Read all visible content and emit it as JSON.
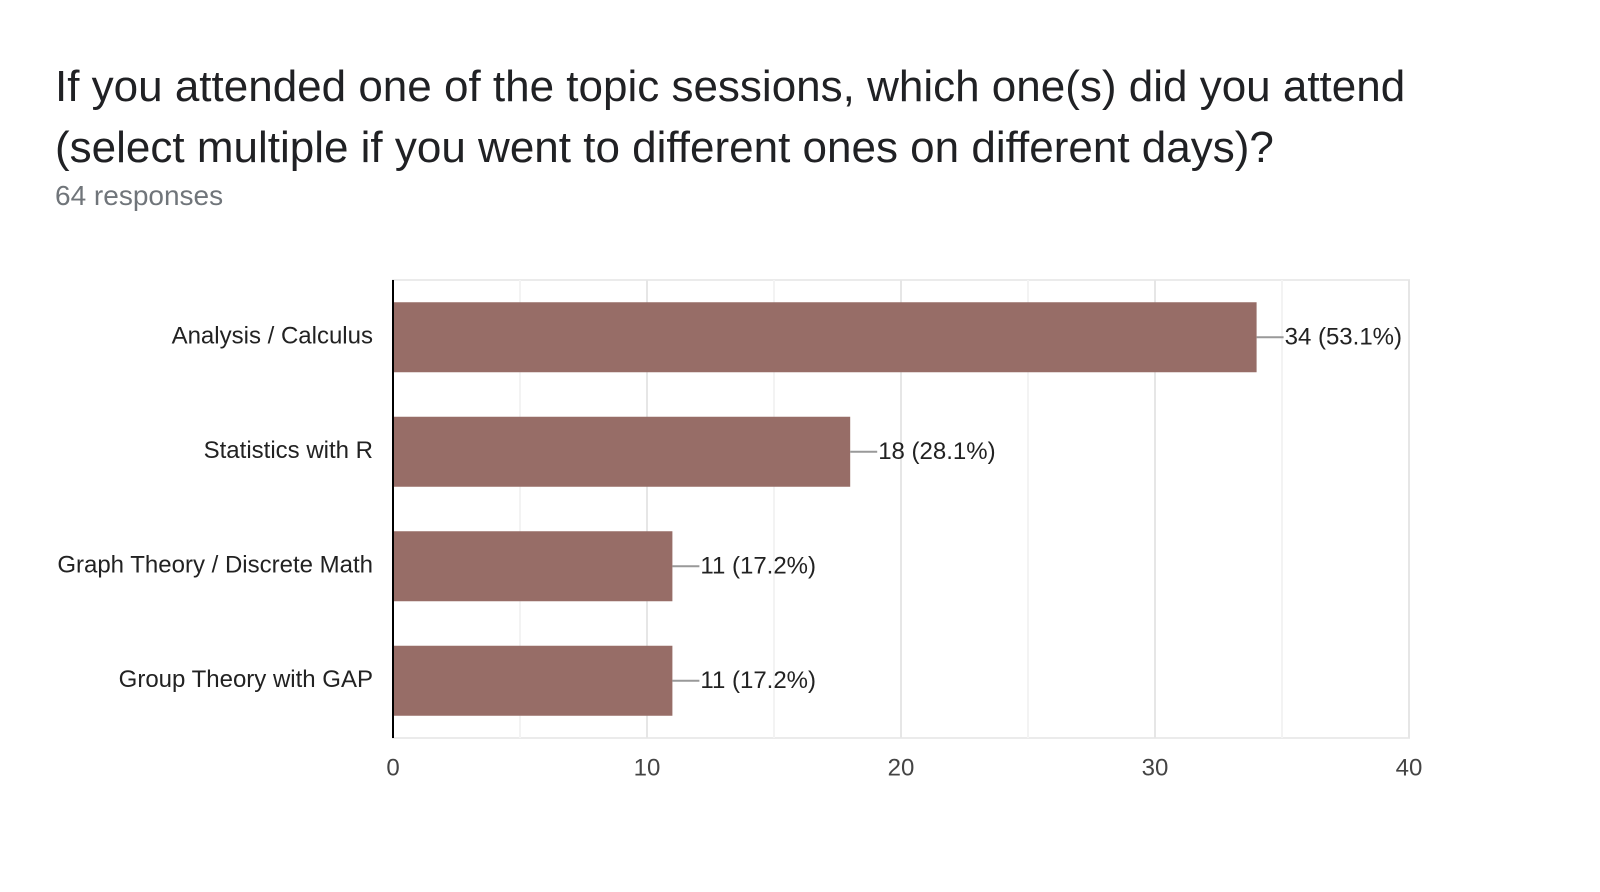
{
  "chart_data": {
    "type": "hbar",
    "title": "If you attended one of the topic sessions, which one(s) did you attend (select multiple if you went to different ones on different days)?",
    "subtitle": "64 responses",
    "categories": [
      "Analysis / Calculus",
      "Statistics with R",
      "Graph Theory / Discrete Math",
      "Group Theory with GAP"
    ],
    "values": [
      34,
      18,
      11,
      11
    ],
    "value_labels": [
      "34 (53.1%)",
      "18 (28.1%)",
      "11 (17.2%)",
      "11 (17.2%)"
    ],
    "color": "#976d67",
    "xlim": [
      0,
      40
    ],
    "xticks": [
      0,
      10,
      20,
      30,
      40
    ],
    "minor_xticks": [
      5,
      15,
      25,
      35
    ],
    "grid": true
  }
}
